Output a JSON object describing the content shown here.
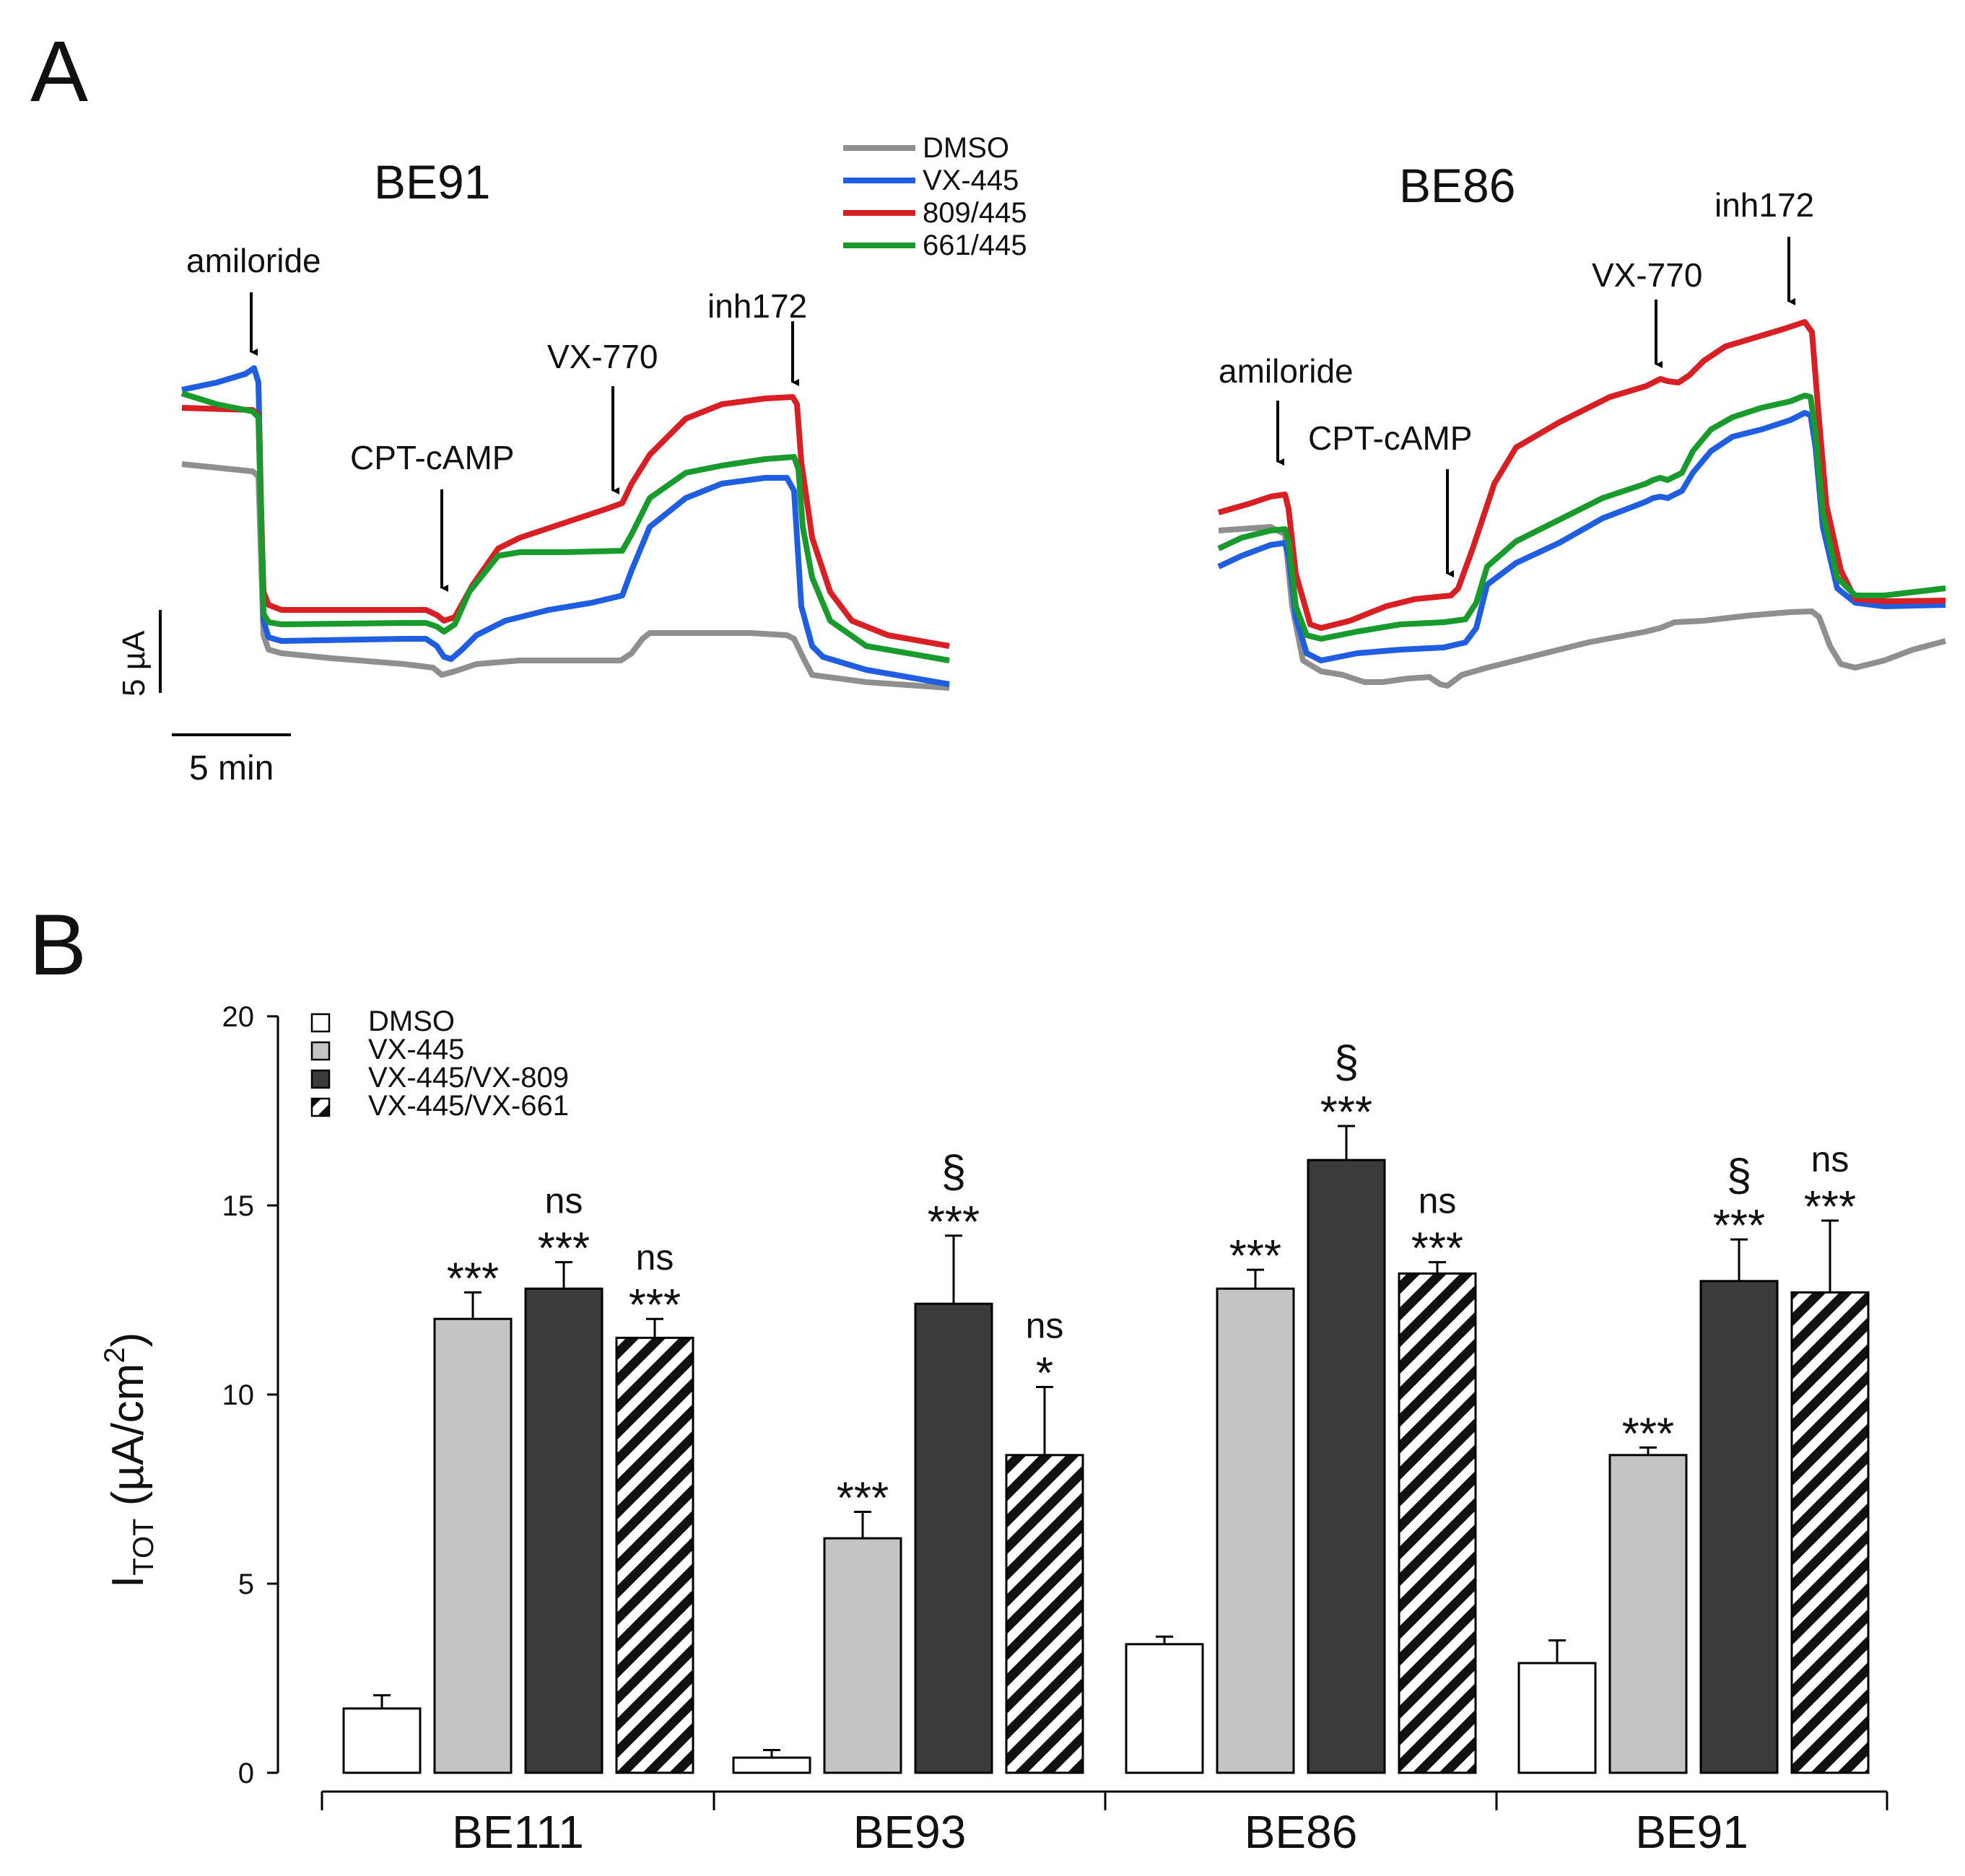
{
  "panelA": {
    "label": "A",
    "legend": [
      {
        "name": "DMSO",
        "color": "#8f8f8f"
      },
      {
        "name": "VX-445",
        "color": "#1f5ee0"
      },
      {
        "name": "809/445",
        "color": "#d81f24"
      },
      {
        "name": "661/445",
        "color": "#189a2c"
      }
    ],
    "scale_bar_current": "5 µA",
    "scale_bar_time": "5 min",
    "left_trace": {
      "title": "BE91",
      "markers": [
        "amiloride",
        "CPT-cAMP",
        "VX-770",
        "inh172"
      ]
    },
    "right_trace": {
      "title": "BE86",
      "markers": [
        "amiloride",
        "CPT-cAMP",
        "VX-770",
        "inh172"
      ]
    }
  },
  "panelB": {
    "label": "B",
    "ylabel_main": "I",
    "ylabel_sub": "TOT",
    "ylabel_units_pre": " (µA/cm",
    "ylabel_sup": "2",
    "ylabel_units_post": ")"
  },
  "chart_data": {
    "type": "bar",
    "categories": [
      "BE111",
      "BE93",
      "BE86",
      "BE91"
    ],
    "ylim": [
      0,
      20
    ],
    "yticks": [
      0,
      5,
      10,
      15,
      20
    ],
    "ylabel": "ITOT (µA/cm2)",
    "xlabel": "",
    "series": [
      {
        "name": "DMSO",
        "pattern": "white",
        "values": [
          1.7,
          0.4,
          3.4,
          2.9
        ],
        "errors": [
          0.35,
          0.2,
          0.2,
          0.6
        ],
        "annotations": [
          [],
          [],
          [],
          []
        ]
      },
      {
        "name": "VX-445",
        "pattern": "light-gray",
        "values": [
          12.0,
          6.2,
          12.8,
          8.4
        ],
        "errors": [
          0.7,
          0.7,
          0.5,
          0.2
        ],
        "annotations": [
          [
            "***"
          ],
          [
            "***"
          ],
          [
            "***"
          ],
          [
            "***"
          ]
        ]
      },
      {
        "name": "VX-445/VX-809",
        "pattern": "dark-gray",
        "values": [
          12.8,
          12.4,
          16.2,
          13.0
        ],
        "errors": [
          0.7,
          1.8,
          0.9,
          1.1
        ],
        "annotations": [
          [
            "***",
            "ns"
          ],
          [
            "***",
            "§"
          ],
          [
            "***",
            "§"
          ],
          [
            "***",
            "§"
          ]
        ]
      },
      {
        "name": "VX-445/VX-661",
        "pattern": "striped",
        "values": [
          11.5,
          8.4,
          13.2,
          12.7
        ],
        "errors": [
          0.5,
          1.8,
          0.3,
          1.9
        ],
        "annotations": [
          [
            "***",
            "ns"
          ],
          [
            "*",
            "ns"
          ],
          [
            "***",
            "ns"
          ],
          [
            "***",
            "ns"
          ]
        ]
      }
    ]
  }
}
